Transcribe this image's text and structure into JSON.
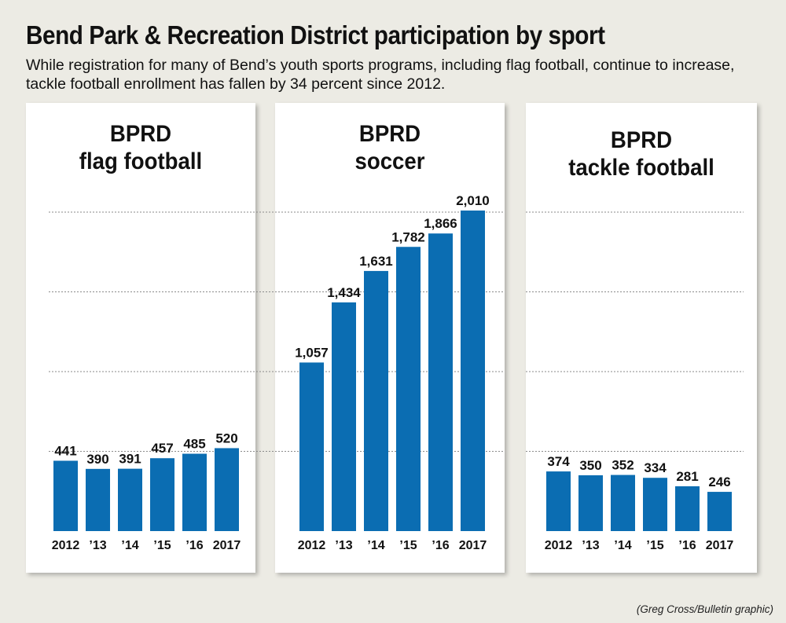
{
  "title": "Bend Park & Recreation District participation by sport",
  "subtitle": "While registration for many of Bend’s youth sports programs, including flag football, continue to increase, tackle football enrollment has fallen by 34 percent since 2012.",
  "credit": "(Greg Cross/Bulletin graphic)",
  "colors": {
    "bar": "#0b6db2",
    "grid": "#8a8a8a",
    "background": "#ecebe4",
    "panel": "#ffffff"
  },
  "chart_data": [
    {
      "type": "bar",
      "title": [
        "BPRD",
        "flag football"
      ],
      "categories": [
        "2012",
        "’13",
        "’14",
        "’15",
        "’16",
        "2017"
      ],
      "values": [
        441,
        390,
        391,
        457,
        485,
        520
      ],
      "value_labels": [
        "441",
        "390",
        "391",
        "457",
        "485",
        "520"
      ],
      "ylim": [
        0,
        2000
      ],
      "grid": true
    },
    {
      "type": "bar",
      "title": [
        "BPRD",
        "soccer"
      ],
      "categories": [
        "2012",
        "’13",
        "’14",
        "’15",
        "’16",
        "2017"
      ],
      "values": [
        1057,
        1434,
        1631,
        1782,
        1866,
        2010
      ],
      "value_labels": [
        "1,057",
        "1,434",
        "1,631",
        "1,782",
        "1,866",
        "2,010"
      ],
      "ylim": [
        0,
        2000
      ],
      "grid": true
    },
    {
      "type": "bar",
      "title": [
        "BPRD",
        "tackle football"
      ],
      "categories": [
        "2012",
        "’13",
        "’14",
        "’15",
        "’16",
        "2017"
      ],
      "values": [
        374,
        350,
        352,
        334,
        281,
        246
      ],
      "value_labels": [
        "374",
        "350",
        "352",
        "334",
        "281",
        "246"
      ],
      "ylim": [
        0,
        2000
      ],
      "grid": true
    }
  ]
}
